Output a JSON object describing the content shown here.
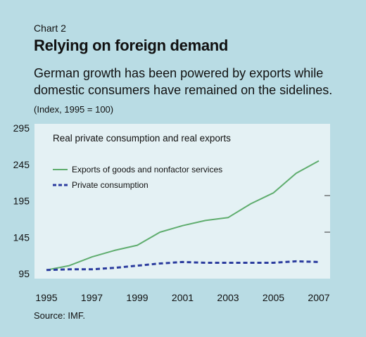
{
  "header": {
    "chart_number": "Chart 2",
    "title": "Relying on foreign demand",
    "subtitle": "German growth has been powered by exports while domestic consumers have remained on the sidelines.",
    "unit_note": "(Index, 1995 = 100)"
  },
  "footer": {
    "source": "Source: IMF."
  },
  "colors": {
    "background": "#b9dce4",
    "plot_area": "#e4f1f4",
    "exports": "#5fad6e",
    "consumption": "#2b3c9e"
  },
  "chart_data": {
    "type": "line",
    "title": "Real private consumption and real exports",
    "xlabel": "",
    "ylabel": "",
    "x": [
      1995,
      1996,
      1997,
      1998,
      1999,
      2000,
      2001,
      2002,
      2003,
      2004,
      2005,
      2006,
      2007
    ],
    "x_ticks": [
      "1995",
      "1997",
      "1999",
      "2001",
      "2003",
      "2005",
      "2007"
    ],
    "y_ticks": [
      "95",
      "145",
      "195",
      "245",
      "295"
    ],
    "ylim": [
      95,
      295
    ],
    "xlim": [
      1995,
      2007
    ],
    "grid": false,
    "legend_position": "top-left",
    "series": [
      {
        "name": "Exports of goods and nonfactor services",
        "style": "solid",
        "color": "#5fad6e",
        "values": [
          100,
          106,
          118,
          127,
          134,
          152,
          161,
          168,
          172,
          191,
          206,
          233,
          250
        ]
      },
      {
        "name": "Private consumption",
        "style": "dashed",
        "color": "#2b3c9e",
        "values": [
          100,
          101,
          101,
          103,
          106,
          109,
          111,
          110,
          110,
          110,
          110,
          112,
          111
        ]
      }
    ]
  }
}
